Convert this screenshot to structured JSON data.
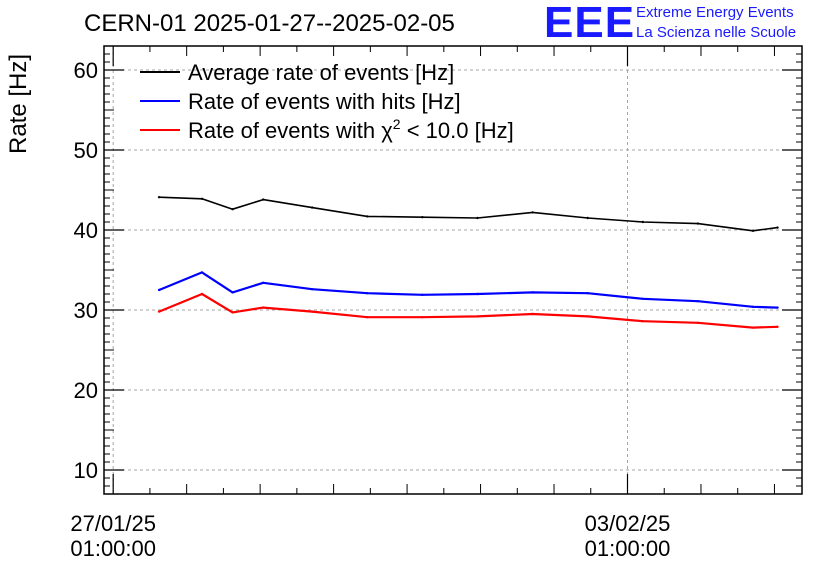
{
  "header": {
    "title": "CERN-01 2025-01-27--2025-02-05",
    "logo_text": "EEE",
    "logo_line1": "Extreme Energy Events",
    "logo_line2": "La Scienza nelle Scuole"
  },
  "chart_data": {
    "type": "line",
    "ylabel": "Rate [Hz]",
    "ylim": [
      7,
      63
    ],
    "yticks": [
      10,
      20,
      30,
      40,
      50,
      60
    ],
    "xlim": [
      "2025-01-26T22:00:00",
      "2025-02-05T10:00:00"
    ],
    "xticks": [
      {
        "date": "27/01/25",
        "time": "01:00:00",
        "x": "2025-01-27T01:00:00"
      },
      {
        "date": "03/02/25",
        "time": "01:00:00",
        "x": "2025-02-03T01:00:00"
      }
    ],
    "grid": true,
    "legend_position": "top-left",
    "series": [
      {
        "name": "Average rate of events [Hz]",
        "color": "#000000",
        "points": [
          [
            "2025-01-27T16:00:00",
            44.1
          ],
          [
            "2025-01-28T06:00:00",
            43.9
          ],
          [
            "2025-01-28T16:00:00",
            42.6
          ],
          [
            "2025-01-29T02:00:00",
            43.8
          ],
          [
            "2025-01-29T18:00:00",
            42.8
          ],
          [
            "2025-01-30T12:00:00",
            41.7
          ],
          [
            "2025-01-31T06:00:00",
            41.6
          ],
          [
            "2025-02-01T00:00:00",
            41.5
          ],
          [
            "2025-02-01T18:00:00",
            42.2
          ],
          [
            "2025-02-02T12:00:00",
            41.5
          ],
          [
            "2025-02-03T06:00:00",
            41.0
          ],
          [
            "2025-02-04T00:00:00",
            40.8
          ],
          [
            "2025-02-04T18:00:00",
            39.9
          ],
          [
            "2025-02-05T02:00:00",
            40.3
          ]
        ]
      },
      {
        "name": "Rate of events with hits [Hz]",
        "color": "#0000ff",
        "points": [
          [
            "2025-01-27T16:00:00",
            32.5
          ],
          [
            "2025-01-28T06:00:00",
            34.7
          ],
          [
            "2025-01-28T16:00:00",
            32.2
          ],
          [
            "2025-01-29T02:00:00",
            33.4
          ],
          [
            "2025-01-29T18:00:00",
            32.6
          ],
          [
            "2025-01-30T12:00:00",
            32.1
          ],
          [
            "2025-01-31T06:00:00",
            31.9
          ],
          [
            "2025-02-01T00:00:00",
            32.0
          ],
          [
            "2025-02-01T18:00:00",
            32.2
          ],
          [
            "2025-02-02T12:00:00",
            32.1
          ],
          [
            "2025-02-03T06:00:00",
            31.4
          ],
          [
            "2025-02-04T00:00:00",
            31.1
          ],
          [
            "2025-02-04T18:00:00",
            30.4
          ],
          [
            "2025-02-05T02:00:00",
            30.3
          ]
        ]
      },
      {
        "name": "Rate of events with χ² < 10.0 [Hz]",
        "label_prefix": "Rate of events with ",
        "label_chi": "χ",
        "label_sup": "2",
        "label_suffix": " < 10.0 [Hz]",
        "color": "#ff0000",
        "points": [
          [
            "2025-01-27T16:00:00",
            29.8
          ],
          [
            "2025-01-28T06:00:00",
            32.0
          ],
          [
            "2025-01-28T16:00:00",
            29.7
          ],
          [
            "2025-01-29T02:00:00",
            30.3
          ],
          [
            "2025-01-29T18:00:00",
            29.8
          ],
          [
            "2025-01-30T12:00:00",
            29.1
          ],
          [
            "2025-01-31T06:00:00",
            29.1
          ],
          [
            "2025-02-01T00:00:00",
            29.2
          ],
          [
            "2025-02-01T18:00:00",
            29.5
          ],
          [
            "2025-02-02T12:00:00",
            29.2
          ],
          [
            "2025-02-03T06:00:00",
            28.6
          ],
          [
            "2025-02-04T00:00:00",
            28.4
          ],
          [
            "2025-02-04T18:00:00",
            27.8
          ],
          [
            "2025-02-05T02:00:00",
            27.9
          ]
        ]
      }
    ]
  }
}
